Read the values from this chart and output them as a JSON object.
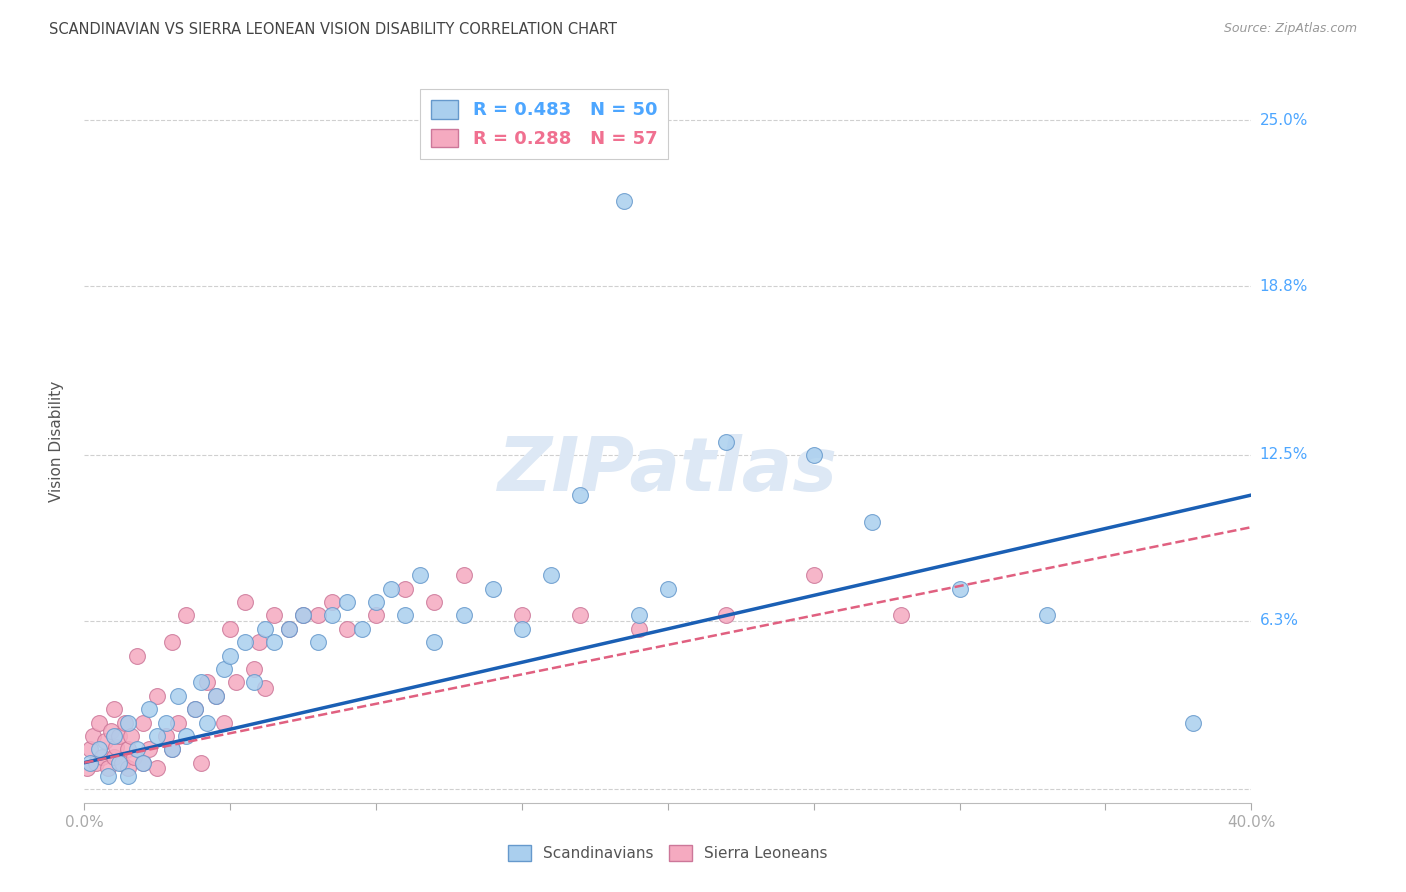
{
  "title": "SCANDINAVIAN VS SIERRA LEONEAN VISION DISABILITY CORRELATION CHART",
  "source": "Source: ZipAtlas.com",
  "ylabel": "Vision Disability",
  "xlim": [
    0.0,
    0.4
  ],
  "ylim": [
    -0.005,
    0.265
  ],
  "yticks": [
    0.0,
    0.063,
    0.125,
    0.188,
    0.25
  ],
  "ytick_labels": [
    "",
    "6.3%",
    "12.5%",
    "18.8%",
    "25.0%"
  ],
  "background_color": "#ffffff",
  "grid_color": "#d0d0d0",
  "title_color": "#333333",
  "right_tick_color": "#4da6ff",
  "scandinavian_color": "#aacfee",
  "scandinavian_edge": "#6699cc",
  "sierra_leonean_color": "#f5aac0",
  "sierra_leonean_edge": "#cc7799",
  "trendline_blue": "#1a5fb4",
  "trendline_pink": "#e06080",
  "R_scand": 0.483,
  "N_scand": 50,
  "R_sierra": 0.288,
  "N_sierra": 57,
  "scandinavians_x": [
    0.002,
    0.005,
    0.008,
    0.01,
    0.012,
    0.015,
    0.015,
    0.018,
    0.02,
    0.022,
    0.025,
    0.028,
    0.03,
    0.032,
    0.035,
    0.038,
    0.04,
    0.042,
    0.045,
    0.048,
    0.05,
    0.055,
    0.058,
    0.062,
    0.065,
    0.07,
    0.075,
    0.08,
    0.085,
    0.09,
    0.095,
    0.1,
    0.105,
    0.11,
    0.115,
    0.12,
    0.13,
    0.14,
    0.15,
    0.16,
    0.17,
    0.185,
    0.19,
    0.2,
    0.22,
    0.25,
    0.27,
    0.3,
    0.33,
    0.38
  ],
  "scandinavians_y": [
    0.01,
    0.015,
    0.005,
    0.02,
    0.01,
    0.005,
    0.025,
    0.015,
    0.01,
    0.03,
    0.02,
    0.025,
    0.015,
    0.035,
    0.02,
    0.03,
    0.04,
    0.025,
    0.035,
    0.045,
    0.05,
    0.055,
    0.04,
    0.06,
    0.055,
    0.06,
    0.065,
    0.055,
    0.065,
    0.07,
    0.06,
    0.07,
    0.075,
    0.065,
    0.08,
    0.055,
    0.065,
    0.075,
    0.06,
    0.08,
    0.11,
    0.22,
    0.065,
    0.075,
    0.13,
    0.125,
    0.1,
    0.075,
    0.065,
    0.025
  ],
  "sierra_x": [
    0.001,
    0.002,
    0.003,
    0.004,
    0.005,
    0.006,
    0.007,
    0.008,
    0.009,
    0.01,
    0.01,
    0.011,
    0.012,
    0.013,
    0.014,
    0.015,
    0.015,
    0.016,
    0.017,
    0.018,
    0.02,
    0.02,
    0.022,
    0.025,
    0.025,
    0.028,
    0.03,
    0.03,
    0.032,
    0.035,
    0.038,
    0.04,
    0.042,
    0.045,
    0.048,
    0.05,
    0.052,
    0.055,
    0.058,
    0.06,
    0.062,
    0.065,
    0.07,
    0.075,
    0.08,
    0.085,
    0.09,
    0.1,
    0.11,
    0.12,
    0.13,
    0.15,
    0.17,
    0.19,
    0.22,
    0.25,
    0.28
  ],
  "sierra_y": [
    0.008,
    0.015,
    0.02,
    0.01,
    0.025,
    0.012,
    0.018,
    0.008,
    0.022,
    0.012,
    0.03,
    0.016,
    0.02,
    0.01,
    0.025,
    0.008,
    0.015,
    0.02,
    0.012,
    0.05,
    0.01,
    0.025,
    0.015,
    0.008,
    0.035,
    0.02,
    0.015,
    0.055,
    0.025,
    0.065,
    0.03,
    0.01,
    0.04,
    0.035,
    0.025,
    0.06,
    0.04,
    0.07,
    0.045,
    0.055,
    0.038,
    0.065,
    0.06,
    0.065,
    0.065,
    0.07,
    0.06,
    0.065,
    0.075,
    0.07,
    0.08,
    0.065,
    0.065,
    0.06,
    0.065,
    0.08,
    0.065
  ]
}
